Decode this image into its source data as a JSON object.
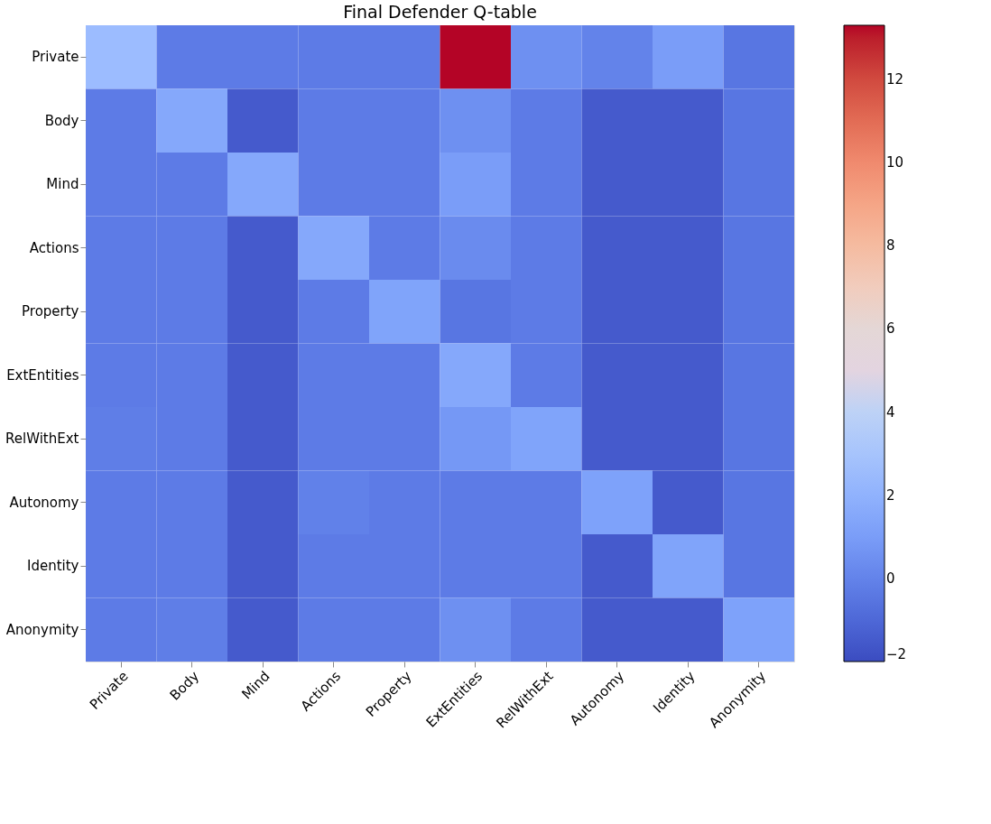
{
  "chart_data": {
    "type": "heatmap",
    "title": "Final Defender Q-table",
    "categories": [
      "Private",
      "Body",
      "Mind",
      "Actions",
      "Property",
      "ExtEntities",
      "RelWithExt",
      "Autonomy",
      "Identity",
      "Anonymity"
    ],
    "y_categories": [
      "Private",
      "Body",
      "Mind",
      "Actions",
      "Property",
      "ExtEntities",
      "RelWithExt",
      "Autonomy",
      "Identity",
      "Anonymity"
    ],
    "cells": [
      [
        2.5,
        -0.3,
        -0.3,
        -0.3,
        -0.3,
        13.3,
        0.5,
        0,
        1,
        -0.5
      ],
      [
        -0.3,
        1.5,
        -1.5,
        -0.3,
        -0.3,
        0.5,
        -0.3,
        -1.5,
        -1.5,
        -0.5
      ],
      [
        -0.3,
        -0.3,
        1.5,
        -0.3,
        -0.3,
        1,
        -0.3,
        -1.5,
        -1.5,
        -0.5
      ],
      [
        -0.3,
        -0.3,
        -1.5,
        1.5,
        -0.3,
        0.3,
        -0.3,
        -1.5,
        -1.5,
        -0.5
      ],
      [
        -0.3,
        -0.3,
        -1.5,
        -0.3,
        1.3,
        -0.5,
        -0.3,
        -1.5,
        -1.5,
        -0.5
      ],
      [
        -0.3,
        -0.3,
        -1.5,
        -0.3,
        -0.3,
        1.5,
        -0.3,
        -1.5,
        -1.5,
        -0.5
      ],
      [
        -0.2,
        -0.3,
        -1.5,
        -0.3,
        -0.3,
        0.8,
        1.3,
        -1.5,
        -1.5,
        -0.5
      ],
      [
        -0.3,
        -0.3,
        -1.5,
        -0.1,
        -0.3,
        -0.3,
        -0.3,
        1.2,
        -1.5,
        -0.5
      ],
      [
        -0.3,
        -0.3,
        -1.5,
        -0.3,
        -0.3,
        -0.3,
        -0.3,
        -1.5,
        1.3,
        -0.5
      ],
      [
        -0.3,
        -0.2,
        -1.5,
        -0.3,
        -0.3,
        0.5,
        -0.3,
        -1.5,
        -1.5,
        1.2
      ]
    ],
    "clim": [
      -2,
      13.3
    ],
    "cticks": [
      -2,
      0,
      2,
      4,
      6,
      8,
      10,
      12
    ]
  }
}
